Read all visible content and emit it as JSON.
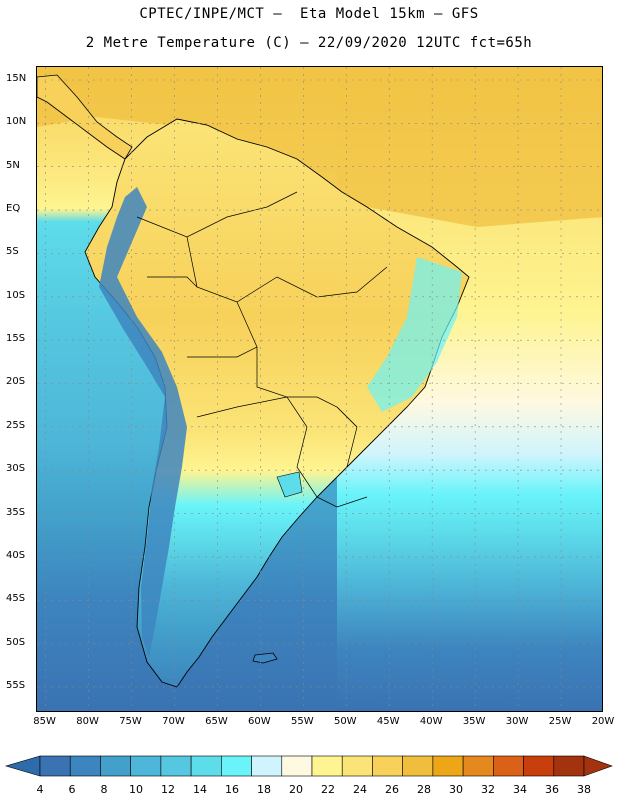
{
  "title_line1": "CPTEC/INPE/MCT –  Eta Model 15km – GFS",
  "title_line2": "2 Metre Temperature (C) – 22/09/2020 12UTC fct=65h",
  "map": {
    "lat_labels": [
      "15N",
      "10N",
      "5N",
      "EQ",
      "5S",
      "10S",
      "15S",
      "20S",
      "25S",
      "30S",
      "35S",
      "40S",
      "45S",
      "50S",
      "55S"
    ],
    "lat_values": [
      15,
      10,
      5,
      0,
      -5,
      -10,
      -15,
      -20,
      -25,
      -30,
      -35,
      -40,
      -45,
      -50,
      -55
    ],
    "lon_labels": [
      "85W",
      "80W",
      "75W",
      "70W",
      "65W",
      "60W",
      "55W",
      "50W",
      "45W",
      "40W",
      "35W",
      "30W",
      "25W",
      "20W"
    ],
    "lon_values": [
      -85,
      -80,
      -75,
      -70,
      -65,
      -60,
      -55,
      -50,
      -45,
      -40,
      -35,
      -30,
      -25,
      -20
    ],
    "lat_range": [
      -58,
      16.5
    ],
    "lon_range": [
      -86,
      -20
    ]
  },
  "colorbar": {
    "levels": [
      "4",
      "6",
      "8",
      "10",
      "12",
      "14",
      "16",
      "18",
      "20",
      "22",
      "24",
      "26",
      "28",
      "30",
      "32",
      "34",
      "36",
      "38"
    ],
    "colors": [
      "#3a72b2",
      "#3d85bf",
      "#42a0ca",
      "#4eb6d8",
      "#55c7e0",
      "#5ddcea",
      "#6af4fa",
      "#cff4fd",
      "#fef9e1",
      "#fef491",
      "#fbe477",
      "#f7d15a",
      "#efbe3c",
      "#eca618",
      "#e5891e",
      "#dc6118",
      "#c83e0c",
      "#a3320e"
    ],
    "under_color": "#2e6bab",
    "over_color": "#a3320e"
  }
}
